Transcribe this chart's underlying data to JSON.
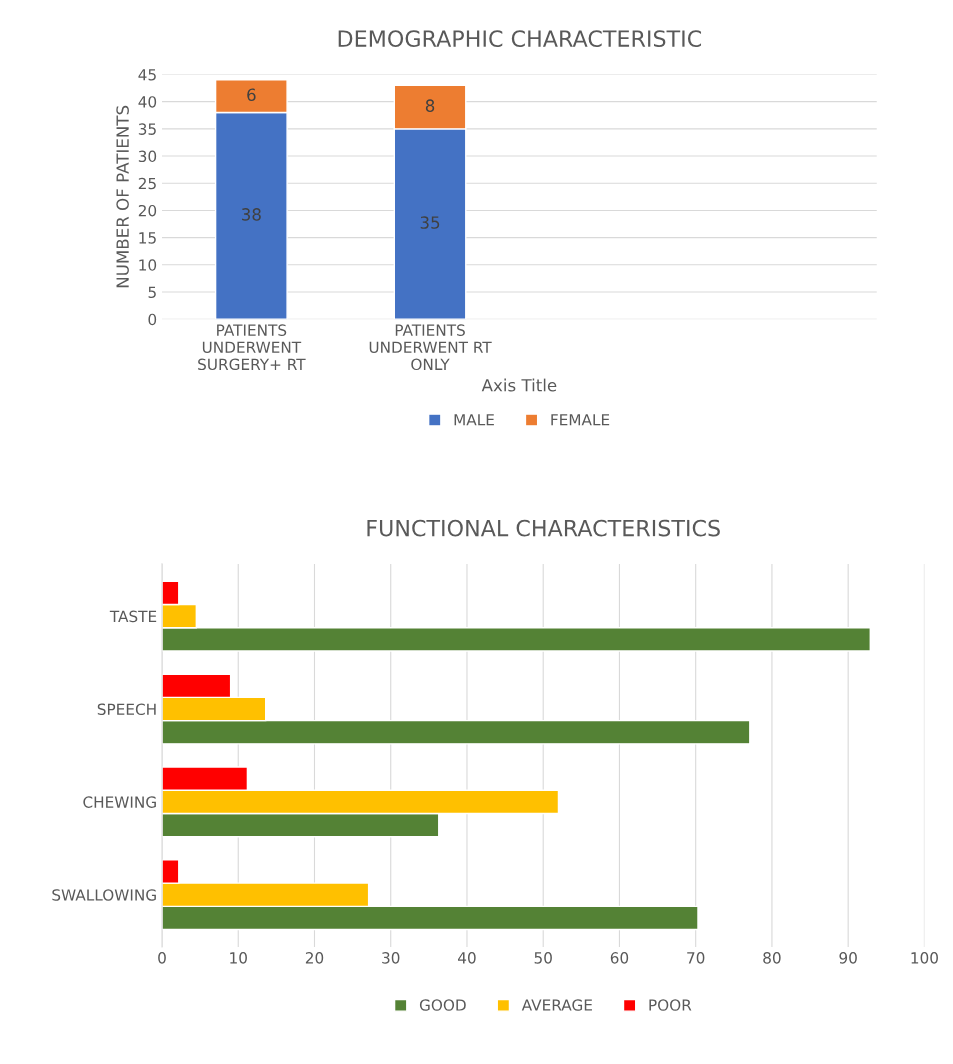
{
  "chart_data": [
    {
      "type": "bar",
      "title": "DEMOGRAPHIC CHARACTERISTIC",
      "xlabel": "Axis Title",
      "ylabel": "NUMBER OF PATIENTS",
      "categories": [
        "PATIENTS\nUNDERWENT\nSURGERY+ RT",
        "PATIENTS\nUNDERWENT RT\nONLY"
      ],
      "series": [
        {
          "name": "MALE",
          "color": "#4472c4",
          "values": [
            38,
            35
          ]
        },
        {
          "name": "FEMALE",
          "color": "#ed7d31",
          "values": [
            6,
            8
          ]
        }
      ],
      "stacked": true,
      "data_labels": true,
      "ylim": [
        0,
        45
      ],
      "yticks": [
        0,
        5,
        10,
        15,
        20,
        25,
        30,
        35,
        40,
        45
      ],
      "grid": "y",
      "legend": "bottom"
    },
    {
      "type": "bar",
      "title": "FUNCTIONAL CHARACTERISTICS",
      "orientation": "horizontal",
      "categories": [
        "TASTE",
        "SPEECH",
        "CHEWING",
        "SWALLOWING"
      ],
      "series": [
        {
          "name": "GOOD",
          "color": "#548235",
          "values": [
            92.9,
            77.1,
            36.3,
            70.3
          ]
        },
        {
          "name": "AVERAGE",
          "color": "#ffc000",
          "values": [
            4.5,
            13.6,
            52.0,
            27.1
          ]
        },
        {
          "name": "POOR",
          "color": "#ff0000",
          "values": [
            2.2,
            9.0,
            11.2,
            2.2
          ]
        }
      ],
      "xlim": [
        0,
        100
      ],
      "xticks": [
        0,
        10,
        20,
        30,
        40,
        50,
        60,
        70,
        80,
        90,
        100
      ],
      "grid": "x",
      "legend": "bottom"
    }
  ]
}
